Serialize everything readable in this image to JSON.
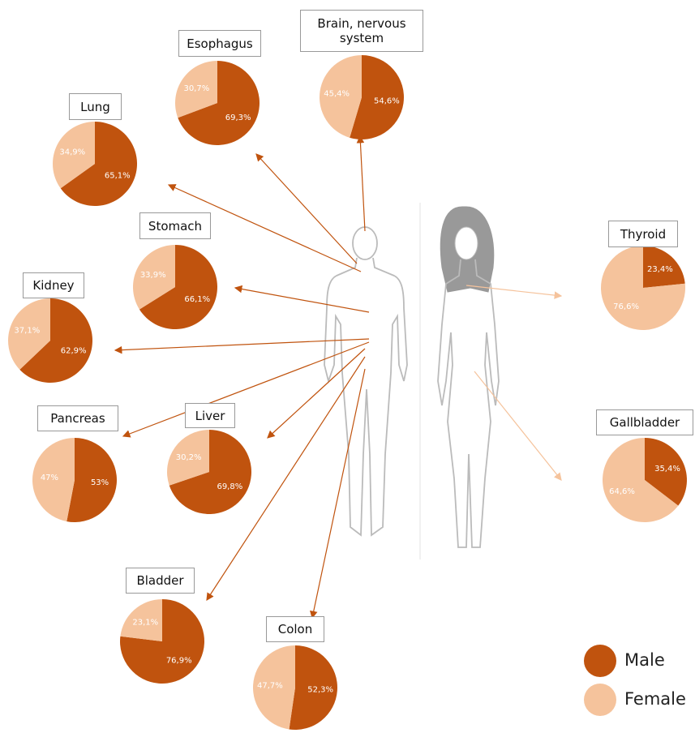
{
  "chart_data": [
    {
      "type": "pie",
      "title": "Esophagus",
      "values": [
        69.3,
        30.7
      ],
      "value_labels": [
        "69,3%",
        "30,7%"
      ]
    },
    {
      "type": "pie",
      "title": "Brain, nervous system",
      "values": [
        54.6,
        45.4
      ],
      "value_labels": [
        "54,6%",
        "45,4%"
      ]
    },
    {
      "type": "pie",
      "title": "Lung",
      "values": [
        65.1,
        34.9
      ],
      "value_labels": [
        "65,1%",
        "34,9%"
      ]
    },
    {
      "type": "pie",
      "title": "Stomach",
      "values": [
        66.1,
        33.9
      ],
      "value_labels": [
        "66,1%",
        "33,9%"
      ]
    },
    {
      "type": "pie",
      "title": "Kidney",
      "values": [
        62.9,
        37.1
      ],
      "value_labels": [
        "62,9%",
        "37,1%"
      ]
    },
    {
      "type": "pie",
      "title": "Pancreas",
      "values": [
        53,
        47
      ],
      "value_labels": [
        "53%",
        "47%"
      ]
    },
    {
      "type": "pie",
      "title": "Liver",
      "values": [
        69.8,
        30.2
      ],
      "value_labels": [
        "69,8%",
        "30,2%"
      ]
    },
    {
      "type": "pie",
      "title": "Bladder",
      "values": [
        76.9,
        23.1
      ],
      "value_labels": [
        "76,9%",
        "23,1%"
      ]
    },
    {
      "type": "pie",
      "title": "Colon",
      "values": [
        52.3,
        47.7
      ],
      "value_labels": [
        "52,3%",
        "47,7%"
      ]
    },
    {
      "type": "pie",
      "title": "Thyroid",
      "values": [
        23.4,
        76.6
      ],
      "value_labels": [
        "23,4%",
        "76,6%"
      ]
    },
    {
      "type": "pie",
      "title": "Gallbladder",
      "values": [
        35.4,
        64.6
      ],
      "value_labels": [
        "35,4%",
        "64,6%"
      ]
    }
  ],
  "legend": [
    {
      "name": "Male",
      "color": "#c0530e"
    },
    {
      "name": "Female",
      "color": "#f5c39c"
    }
  ]
}
